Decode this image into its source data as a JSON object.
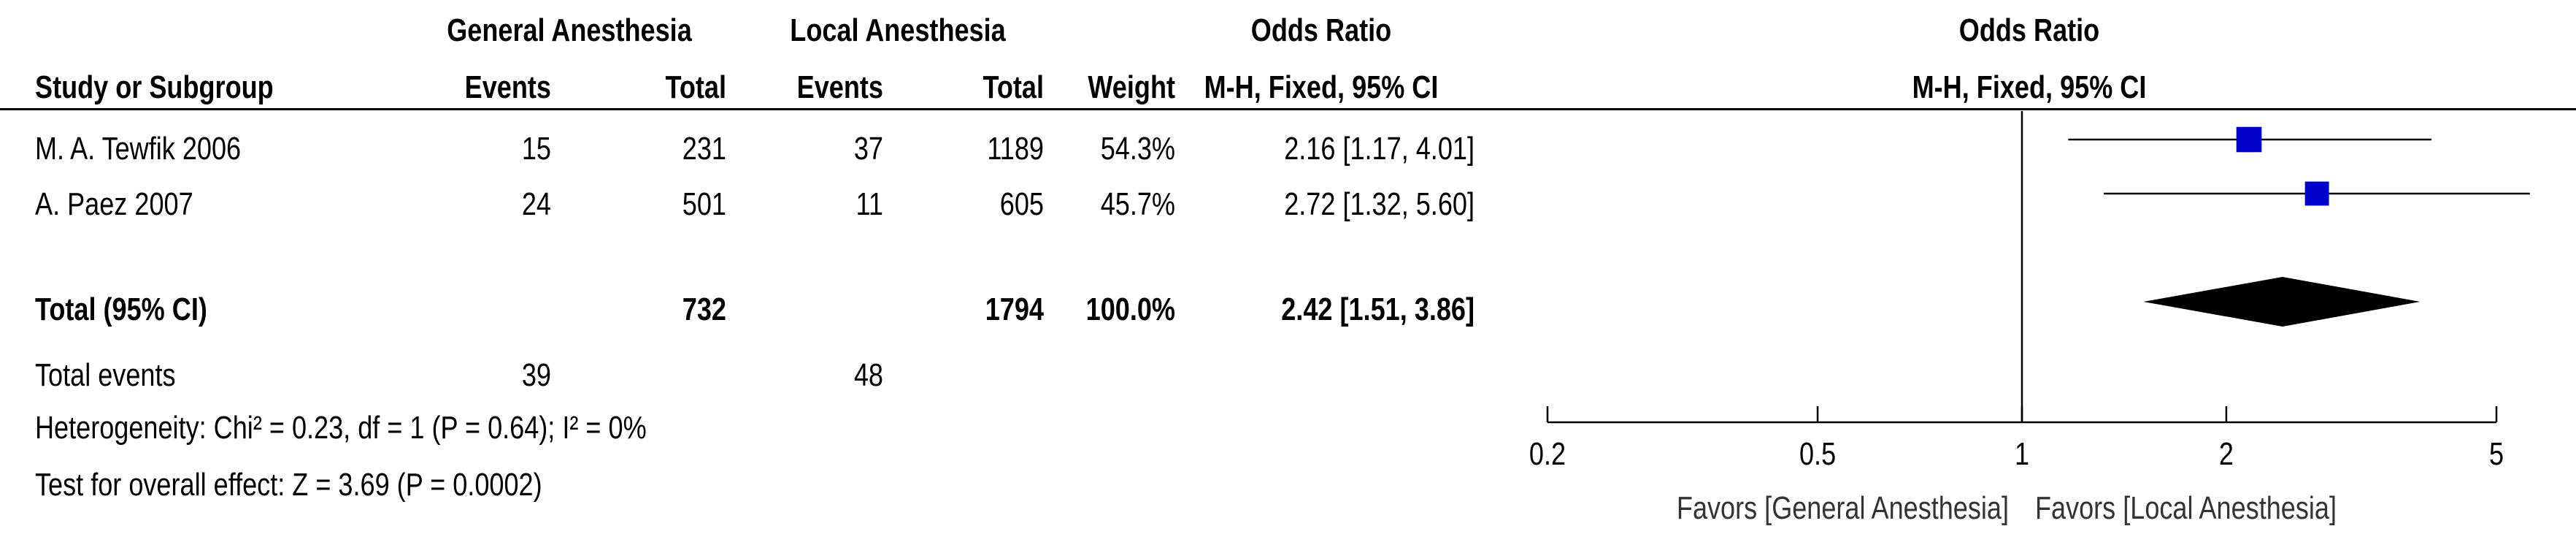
{
  "headers": {
    "group1": "General Anesthesia",
    "group2": "Local Anesthesia",
    "effect_group": "Odds Ratio",
    "plot_title": "Odds Ratio",
    "study_col": "Study or Subgroup",
    "events1": "Events",
    "total1": "Total",
    "events2": "Events",
    "total2": "Total",
    "weight": "Weight",
    "method": "M-H, Fixed, 95% CI",
    "plot_method": "M-H, Fixed, 95% CI"
  },
  "studies": [
    {
      "name": "M. A. Tewfik 2006",
      "events1": "15",
      "total1": "231",
      "events2": "37",
      "total2": "1189",
      "weight": "54.3%",
      "ci_text": "2.16 [1.17, 4.01]"
    },
    {
      "name": "A. Paez 2007",
      "events1": "24",
      "total1": "501",
      "events2": "11",
      "total2": "605",
      "weight": "45.7%",
      "ci_text": "2.72 [1.32, 5.60]"
    }
  ],
  "total": {
    "label": "Total (95% CI)",
    "total1": "732",
    "total2": "1794",
    "weight": "100.0%",
    "ci_text": "2.42 [1.51, 3.86]"
  },
  "total_events": {
    "label": "Total events",
    "events1": "39",
    "events2": "48"
  },
  "heterogeneity": "Heterogeneity: Chi² = 0.23, df = 1 (P = 0.64); I² = 0%",
  "overall_effect": "Test for overall effect: Z = 3.69 (P = 0.0002)",
  "chart_data": {
    "type": "scatter",
    "subtype": "forest-plot",
    "title": "Odds Ratio",
    "subtitle": "M-H, Fixed, 95% CI",
    "x_scale": "log",
    "xlim": [
      0.2,
      5
    ],
    "x_ticks": [
      0.2,
      0.5,
      1,
      2,
      5
    ],
    "x_tick_labels": [
      "0.2",
      "0.5",
      "1",
      "2",
      "5"
    ],
    "reference_line": 1,
    "studies": [
      {
        "name": "M. A. Tewfik 2006",
        "or": 2.16,
        "lower": 1.17,
        "upper": 4.01,
        "weight": 54.3
      },
      {
        "name": "A. Paez 2007",
        "or": 2.72,
        "lower": 1.32,
        "upper": 5.6,
        "weight": 45.7
      }
    ],
    "pooled": {
      "or": 2.42,
      "lower": 1.51,
      "upper": 3.86
    },
    "favors_left": "Favors [General Anesthesia]",
    "favors_right": "Favors [Local Anesthesia]",
    "colors": {
      "study_box": "#0000cc",
      "pooled_diamond": "#000000",
      "lines": "#000000"
    }
  }
}
